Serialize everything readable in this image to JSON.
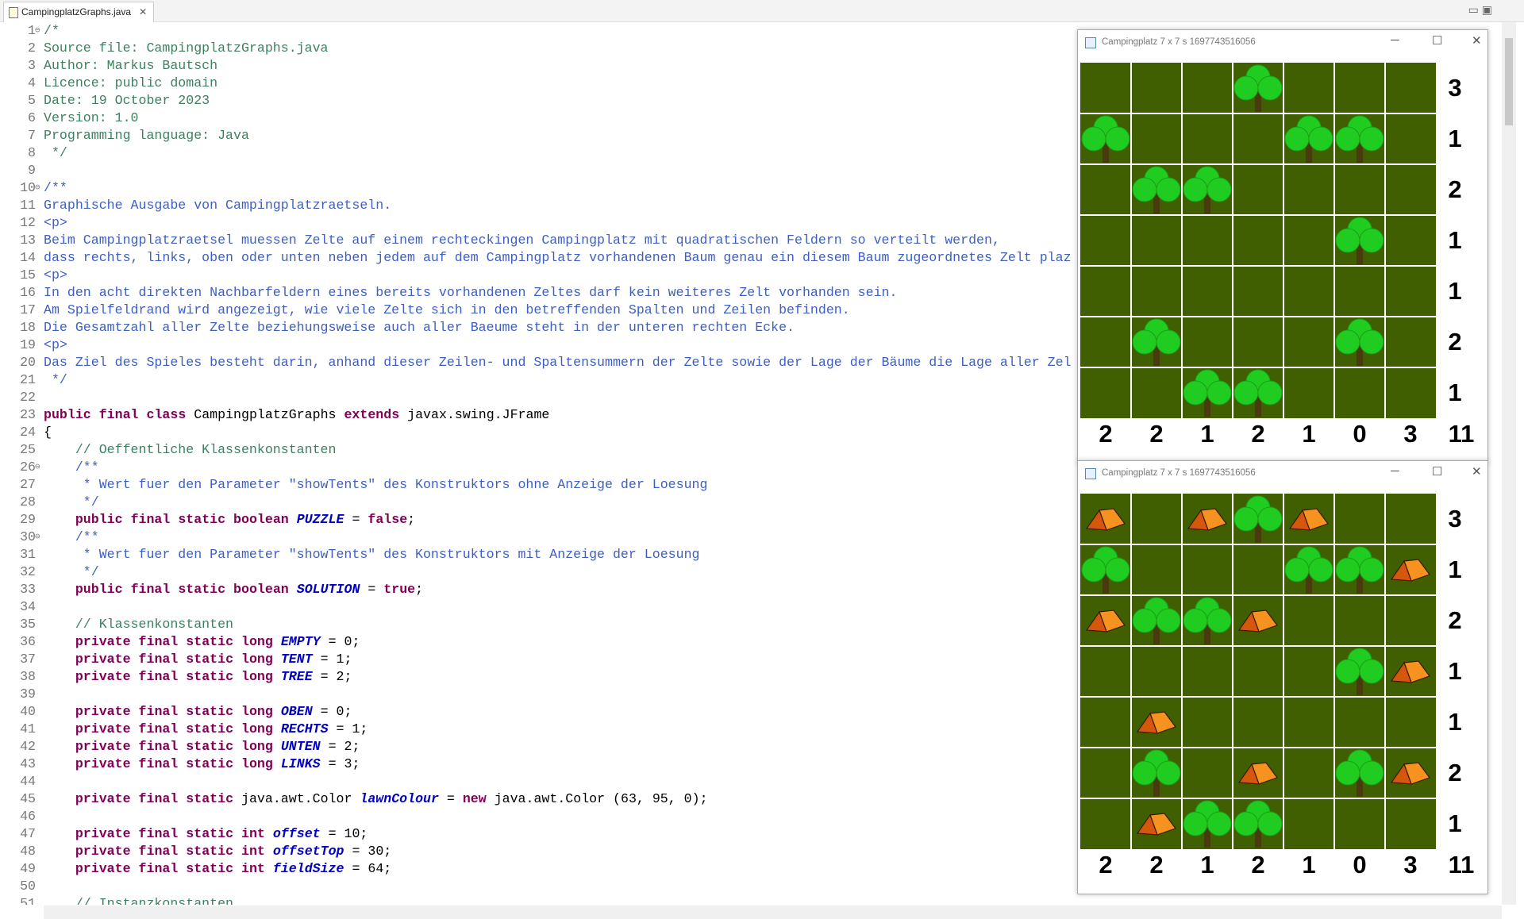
{
  "tab": "CampingplatzGraphs.java",
  "lines": [
    {
      "number": 1,
      "text": "/*"
    },
    {
      "number": 2,
      "text": "Source file: CampingplatzGraphs.java"
    },
    {
      "number": 3,
      "text": "Author: Markus Bautsch"
    },
    {
      "number": 4,
      "text": "Licence: public domain"
    },
    {
      "number": 5,
      "text": "Date: 19 October 2023"
    },
    {
      "number": 6,
      "text": "Version: 1.0"
    },
    {
      "number": 7,
      "text": "Programming language: Java"
    },
    {
      "number": 8,
      "text": " */"
    },
    {
      "number": 9,
      "text": ""
    },
    {
      "number": 10,
      "text": "/**"
    },
    {
      "number": 11,
      "text": "Graphische Ausgabe von Campingplatzraetseln."
    },
    {
      "number": 12,
      "text": "<p>"
    },
    {
      "number": 13,
      "text": "Beim Campingplatzraetsel muessen Zelte auf einem rechteckingen Campingplatz mit quadratischen Feldern so verteilt werden,"
    },
    {
      "number": 14,
      "text": "dass rechts, links, oben oder unten neben jedem auf dem Campingplatz vorhandenen Baum genau ein diesem Baum zugeordnetes Zelt plaz"
    },
    {
      "number": 15,
      "text": "<p>"
    },
    {
      "number": 16,
      "text": "In den acht direkten Nachbarfeldern eines bereits vorhandenen Zeltes darf kein weiteres Zelt vorhanden sein."
    },
    {
      "number": 17,
      "text": "Am Spielfeldrand wird angezeigt, wie viele Zelte sich in den betreffenden Spalten und Zeilen befinden."
    },
    {
      "number": 18,
      "text": "Die Gesamtzahl aller Zelte beziehungsweise auch aller Baeume steht in der unteren rechten Ecke."
    },
    {
      "number": 19,
      "text": "<p>"
    },
    {
      "number": 20,
      "text": "Das Ziel des Spieles besteht darin, anhand dieser Zeilen- und Spaltensummern der Zelte sowie der Lage der Bäume die Lage aller Zel"
    },
    {
      "number": 21,
      "text": " */"
    },
    {
      "number": 22,
      "text": ""
    },
    {
      "number": 23,
      "text": "public final class CampingplatzGraphs extends javax.swing.JFrame"
    },
    {
      "number": 24,
      "text": "{"
    },
    {
      "number": 25,
      "text": "    // Oeffentliche Klassenkonstanten"
    },
    {
      "number": 26,
      "text": "    /**"
    },
    {
      "number": 27,
      "text": "     * Wert fuer den Parameter \"showTents\" des Konstruktors ohne Anzeige der Loesung"
    },
    {
      "number": 28,
      "text": "     */"
    },
    {
      "number": 29,
      "text": "    public final static boolean PUZZLE = false;"
    },
    {
      "number": 30,
      "text": "    /**"
    },
    {
      "number": 31,
      "text": "     * Wert fuer den Parameter \"showTents\" des Konstruktors mit Anzeige der Loesung"
    },
    {
      "number": 32,
      "text": "     */"
    },
    {
      "number": 33,
      "text": "    public final static boolean SOLUTION = true;"
    },
    {
      "number": 34,
      "text": ""
    },
    {
      "number": 35,
      "text": "    // Klassenkonstanten"
    },
    {
      "number": 36,
      "text": "    private final static long EMPTY = 0;"
    },
    {
      "number": 37,
      "text": "    private final static long TENT = 1;"
    },
    {
      "number": 38,
      "text": "    private final static long TREE = 2;"
    },
    {
      "number": 39,
      "text": ""
    },
    {
      "number": 40,
      "text": "    private final static long OBEN = 0;"
    },
    {
      "number": 41,
      "text": "    private final static long RECHTS = 1;"
    },
    {
      "number": 42,
      "text": "    private final static long UNTEN = 2;"
    },
    {
      "number": 43,
      "text": "    private final static long LINKS = 3;"
    },
    {
      "number": 44,
      "text": ""
    },
    {
      "number": 45,
      "text": "    private final static java.awt.Color lawnColour = new java.awt.Color (63, 95, 0);"
    },
    {
      "number": 46,
      "text": ""
    },
    {
      "number": 47,
      "text": "    private final static int offset = 10;"
    },
    {
      "number": 48,
      "text": "    private final static int offsetTop = 30;"
    },
    {
      "number": 49,
      "text": "    private final static int fieldSize = 64;"
    },
    {
      "number": 50,
      "text": ""
    },
    {
      "number": 51,
      "text": "    // Instanzkonstanten"
    }
  ],
  "windows": [
    {
      "title": "Campingplatz 7 x 7 s 1697743516056",
      "row_sums": [
        3,
        1,
        2,
        1,
        1,
        2,
        1
      ],
      "col_sums": [
        2,
        2,
        1,
        2,
        1,
        0,
        3
      ],
      "total": 11
    },
    {
      "title": "Campingplatz 7 x 7 s 1697743516056",
      "row_sums": [
        3,
        1,
        2,
        1,
        1,
        2,
        1
      ],
      "col_sums": [
        2,
        2,
        1,
        2,
        1,
        0,
        3
      ],
      "total": 11
    }
  ]
}
